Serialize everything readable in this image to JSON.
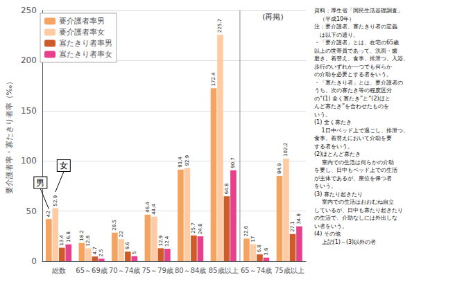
{
  "chart_data": {
    "type": "bar",
    "categories": [
      "総数",
      "65～69歳",
      "70～74歳",
      "75～79歳",
      "80～84歳",
      "85歳以上",
      "65～74歳",
      "75歳以上"
    ],
    "series": [
      {
        "name": "要介護者率男",
        "color": "#F4A460",
        "values": [
          42.0,
          18.2,
          28.5,
          46.4,
          91.4,
          172.4,
          22.6,
          84.9
        ]
      },
      {
        "name": "要介護者率女",
        "color": "#FFCBA4",
        "values": [
          52.9,
          12.8,
          22.0,
          44.4,
          92.9,
          225.7,
          17.0,
          102.2
        ]
      },
      {
        "name": "寡たきり者率男",
        "color": "#CD5C2A",
        "values": [
          13.4,
          4.7,
          9.6,
          12.9,
          25.7,
          64.8,
          6.8,
          27.1
        ]
      },
      {
        "name": "寡たきり者率女",
        "color": "#E8408A",
        "values": [
          16.8,
          2.5,
          5.0,
          12.4,
          24.8,
          90.7,
          3.6,
          34.8
        ]
      }
    ],
    "ylabel": "要介護者率・寡たきり者率（‰）",
    "ylim": [
      0,
      250
    ],
    "yticks": [
      0,
      50,
      100,
      150,
      200,
      250
    ],
    "grid": true,
    "legend": "upper left",
    "data_labels": true,
    "annotations": [
      {
        "text": "(再掲)",
        "categories": [
          "65～74歳",
          "75歳以上"
        ]
      },
      {
        "text": "男",
        "series": 0,
        "category": 0
      },
      {
        "text": "女",
        "series": 1,
        "category": 0
      }
    ],
    "notes": [
      "資料：厚生省「国民生活基礎調査」",
      "　（平成10年）",
      "注：要介護者、寡たきり者の定義",
      "　は以下の通り。",
      "・「要介護者」とは、在宅の65歳",
      "以上の世帯員であって、洗面・歯",
      "磨き、着替え、食事、排泄つ、入浴、",
      "歩行のいずれか一つでも何らか",
      "の介助を必要とする者をいう。",
      "・「寡たきり者」とは、要介護者の",
      "うち、次の寡たき等の程度区分",
      "の“(1) 全く寡たき”と“(2)ほと",
      "んど寡たき”を合わせたものを",
      "いう。",
      "(1) 全く寡たき",
      "　 1日中ベッド上で過ごし、排泄つ、",
      "食事、着替えにおいて介助を要",
      "する者をいう。",
      "(2)ほとんど寡たき",
      "　 室内での生活は何らかの介助",
      "を要し、日中もベッド上での生活",
      "が主体であるが、座位を保つ者",
      "をいう。",
      "(3) 寡たり起きたり",
      "　 室内での生活はおおむね自立",
      "しているが、日中も寡たり起きたり",
      "の生活で、介助なしには外出しな",
      "い者をいう。",
      "(4) その他",
      "　 上記(1)～(3)以外の者"
    ]
  }
}
